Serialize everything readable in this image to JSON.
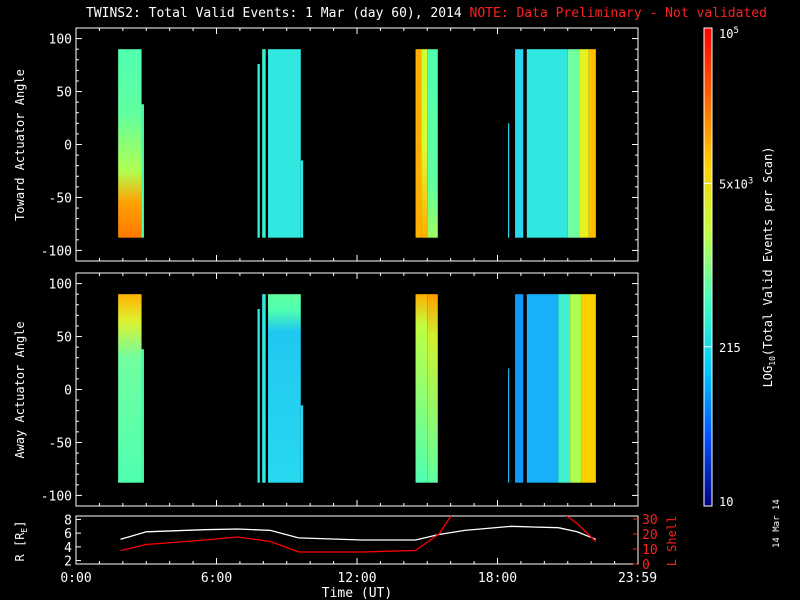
{
  "title": {
    "main": "TWINS2: Total Valid Events:  1 Mar (day  60), 2014",
    "note": "NOTE: Data Preliminary - Not validated"
  },
  "stamp": "14 Mar 14",
  "colorbar": {
    "label": "LOG10(Total Valid Events per Scan)",
    "label_main": "LOG",
    "label_sub": "10",
    "label_rest": "(Total Valid Events per Scan)",
    "ticks": [
      "10",
      "215",
      "5x10",
      "10"
    ],
    "tick_sup": [
      "",
      "",
      "3",
      "5"
    ],
    "min": 10,
    "max": 100000,
    "scale": "log",
    "colormap": [
      "#000080",
      "#0050ff",
      "#00c8ff",
      "#40ffc0",
      "#c0ff40",
      "#ffd000",
      "#ff6000",
      "#ff0000"
    ]
  },
  "colors": {
    "background": "#000000",
    "axes": "#ffffff",
    "lshell": "#ff0000",
    "radius": "#ffffff"
  },
  "chart_data": [
    {
      "type": "heatmap",
      "ylabel": "Toward Actuator Angle",
      "ylim": [
        -110,
        110
      ],
      "yticks": [
        "100",
        "50",
        "0",
        "-50",
        "-100"
      ],
      "xlim": [
        0,
        24
      ],
      "angle_range": [
        -88,
        90
      ],
      "segments": [
        {
          "t0": 1.8,
          "t1": 2.8,
          "stops": [
            [
              90,
              "#50ffb0"
            ],
            [
              30,
              "#60ffa0"
            ],
            [
              -25,
              "#b0ff50"
            ],
            [
              -55,
              "#ffa000"
            ],
            [
              -88,
              "#ff7a00"
            ]
          ]
        },
        {
          "t0": 2.8,
          "t1": 2.9,
          "stops": [
            [
              38,
              "#50ffb0"
            ],
            [
              -88,
              "#50ffb0"
            ]
          ]
        },
        {
          "t0": 7.75,
          "t1": 7.85,
          "stops": [
            [
              76,
              "#38f0d0"
            ],
            [
              -88,
              "#38f0d0"
            ]
          ]
        },
        {
          "t0": 7.95,
          "t1": 8.1,
          "stops": [
            [
              90,
              "#38f0d0"
            ],
            [
              -88,
              "#38f0d0"
            ]
          ]
        },
        {
          "t0": 8.2,
          "t1": 9.6,
          "stops": [
            [
              90,
              "#30e8e0"
            ],
            [
              -88,
              "#30e8e0"
            ]
          ]
        },
        {
          "t0": 9.6,
          "t1": 9.7,
          "stops": [
            [
              -15,
              "#30e8e0"
            ],
            [
              -88,
              "#30e8e0"
            ]
          ]
        },
        {
          "t0": 14.5,
          "t1": 14.75,
          "stops": [
            [
              90,
              "#ffb000"
            ],
            [
              -88,
              "#ffb000"
            ]
          ]
        },
        {
          "t0": 14.75,
          "t1": 15.0,
          "stops": [
            [
              90,
              "#d0ff30"
            ],
            [
              0,
              "#d8ff30"
            ],
            [
              -88,
              "#ffb000"
            ]
          ]
        },
        {
          "t0": 15.0,
          "t1": 15.45,
          "stops": [
            [
              90,
              "#50ffb0"
            ],
            [
              -40,
              "#60ffa0"
            ],
            [
              -88,
              "#a0ff60"
            ]
          ]
        },
        {
          "t0": 18.45,
          "t1": 18.5,
          "stops": [
            [
              20,
              "#28d8f0"
            ],
            [
              -88,
              "#28d8f0"
            ]
          ]
        },
        {
          "t0": 18.75,
          "t1": 19.1,
          "stops": [
            [
              90,
              "#28d8f0"
            ],
            [
              -88,
              "#28d8f0"
            ]
          ]
        },
        {
          "t0": 19.25,
          "t1": 21.0,
          "stops": [
            [
              90,
              "#30e8e0"
            ],
            [
              -88,
              "#30e8e0"
            ]
          ]
        },
        {
          "t0": 21.0,
          "t1": 21.5,
          "stops": [
            [
              90,
              "#70ffa0"
            ],
            [
              -88,
              "#70ffa0"
            ]
          ]
        },
        {
          "t0": 21.5,
          "t1": 21.9,
          "stops": [
            [
              90,
              "#e8f020"
            ],
            [
              -88,
              "#e8f020"
            ]
          ]
        },
        {
          "t0": 21.9,
          "t1": 22.2,
          "stops": [
            [
              90,
              "#ffc000"
            ],
            [
              -88,
              "#ffc000"
            ]
          ]
        }
      ]
    },
    {
      "type": "heatmap",
      "ylabel": "Away Actuator Angle",
      "ylim": [
        -110,
        110
      ],
      "yticks": [
        "100",
        "50",
        "0",
        "-50",
        "-100"
      ],
      "xlim": [
        0,
        24
      ],
      "angle_range": [
        -88,
        90
      ],
      "segments": [
        {
          "t0": 1.8,
          "t1": 2.8,
          "stops": [
            [
              90,
              "#ffb000"
            ],
            [
              65,
              "#e0f030"
            ],
            [
              30,
              "#70ffa0"
            ],
            [
              -88,
              "#50ffb0"
            ]
          ]
        },
        {
          "t0": 2.8,
          "t1": 2.9,
          "stops": [
            [
              38,
              "#50ffb0"
            ],
            [
              -88,
              "#50ffb0"
            ]
          ]
        },
        {
          "t0": 7.75,
          "t1": 7.85,
          "stops": [
            [
              76,
              "#30e8e0"
            ],
            [
              -88,
              "#30e8e0"
            ]
          ]
        },
        {
          "t0": 7.95,
          "t1": 8.1,
          "stops": [
            [
              90,
              "#30e8e0"
            ],
            [
              -88,
              "#30e8e0"
            ]
          ]
        },
        {
          "t0": 8.2,
          "t1": 9.6,
          "stops": [
            [
              90,
              "#60ffa0"
            ],
            [
              75,
              "#50ffb0"
            ],
            [
              55,
              "#20c8f0"
            ],
            [
              -88,
              "#28d8f0"
            ]
          ]
        },
        {
          "t0": 9.6,
          "t1": 9.7,
          "stops": [
            [
              -15,
              "#28d8f0"
            ],
            [
              -88,
              "#28d8f0"
            ]
          ]
        },
        {
          "t0": 14.5,
          "t1": 15.0,
          "stops": [
            [
              90,
              "#ffb000"
            ],
            [
              60,
              "#c0ff40"
            ],
            [
              -88,
              "#50ffb0"
            ]
          ]
        },
        {
          "t0": 15.0,
          "t1": 15.45,
          "stops": [
            [
              90,
              "#ffa000"
            ],
            [
              50,
              "#d0f030"
            ],
            [
              -88,
              "#60ffa0"
            ]
          ]
        },
        {
          "t0": 18.45,
          "t1": 18.5,
          "stops": [
            [
              20,
              "#20b8f0"
            ],
            [
              -88,
              "#20b8f0"
            ]
          ]
        },
        {
          "t0": 18.75,
          "t1": 19.1,
          "stops": [
            [
              90,
              "#1098f8"
            ],
            [
              -88,
              "#1098f8"
            ]
          ]
        },
        {
          "t0": 19.25,
          "t1": 20.6,
          "stops": [
            [
              90,
              "#18b0f8"
            ],
            [
              -88,
              "#18b0f8"
            ]
          ]
        },
        {
          "t0": 20.6,
          "t1": 21.1,
          "stops": [
            [
              90,
              "#40f0d0"
            ],
            [
              -88,
              "#40f0d0"
            ]
          ]
        },
        {
          "t0": 21.1,
          "t1": 21.6,
          "stops": [
            [
              90,
              "#b0ff50"
            ],
            [
              -88,
              "#b0ff50"
            ]
          ]
        },
        {
          "t0": 21.6,
          "t1": 22.2,
          "stops": [
            [
              90,
              "#ffd000"
            ],
            [
              -88,
              "#ffd000"
            ]
          ]
        }
      ]
    },
    {
      "type": "line",
      "xlabel": "Time (UT)",
      "xlim": [
        0,
        24
      ],
      "xticks": [
        {
          "t": 0,
          "label": "0:00"
        },
        {
          "t": 6,
          "label": "6:00"
        },
        {
          "t": 12,
          "label": "12:00"
        },
        {
          "t": 18,
          "label": "18:00"
        },
        {
          "t": 23.98,
          "label": "23:59"
        }
      ],
      "left_axis": {
        "label": "R [RE]",
        "label_main": "R [R",
        "label_sub": "E",
        "label_end": "]",
        "ylim": [
          1.5,
          8.5
        ],
        "ticks": [
          "8",
          "6",
          "4",
          "2"
        ]
      },
      "right_axis": {
        "label": "L Shell",
        "ylim": [
          0,
          32
        ],
        "ticks": [
          "30",
          "20",
          "10",
          "0"
        ]
      },
      "series": [
        {
          "axis": "left",
          "color": "#ffffff",
          "x": [
            1.9,
            3.0,
            5.5,
            6.9,
            8.3,
            9.5,
            12.2,
            14.5,
            15.5,
            16.6,
            18.6,
            19.5,
            20.6,
            21.4,
            22.2
          ],
          "y": [
            5.1,
            6.2,
            6.5,
            6.6,
            6.4,
            5.3,
            5.0,
            5.0,
            5.8,
            6.4,
            7.0,
            6.9,
            6.8,
            6.2,
            5.1
          ]
        },
        {
          "axis": "right",
          "color": "#ff0000",
          "x": [
            1.9,
            3.0,
            5.5,
            6.9,
            8.3,
            9.5,
            12.2,
            14.5,
            15.5,
            16.1
          ],
          "y": [
            9,
            13,
            16,
            18,
            15,
            8,
            8,
            9,
            20,
            34
          ]
        },
        {
          "axis": "right",
          "color": "#ff0000",
          "x": [
            20.8,
            21.4,
            22.2
          ],
          "y": [
            34,
            27,
            15
          ]
        }
      ]
    }
  ]
}
